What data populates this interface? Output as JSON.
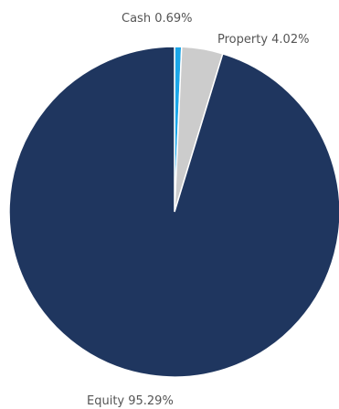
{
  "chart_data": {
    "type": "pie",
    "slices": [
      {
        "label": "Cash",
        "value": 0.69,
        "value_text": "0.69%",
        "color": "#1ba6e8"
      },
      {
        "label": "Property",
        "value": 4.02,
        "value_text": "4.02%",
        "color": "#cccccc"
      },
      {
        "label": "Equity",
        "value": 95.29,
        "value_text": "95.29%",
        "color": "#1f365f"
      }
    ],
    "start_angle": "12 o'clock",
    "direction": "clockwise",
    "legend": "none",
    "labels": "outside"
  }
}
